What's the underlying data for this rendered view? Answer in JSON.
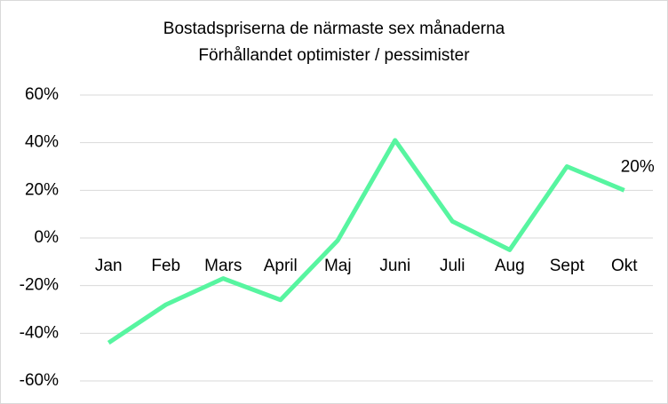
{
  "chart_data": {
    "type": "line",
    "title": "Bostadspriserna de närmaste sex månaderna",
    "subtitle": "Förhållandet optimister / pessimister",
    "categories": [
      "Jan",
      "Feb",
      "Mars",
      "April",
      "Maj",
      "Juni",
      "Juli",
      "Aug",
      "Sept",
      "Okt"
    ],
    "series": [
      {
        "color": "#57f5a0",
        "values": [
          -44,
          -28,
          -17,
          -26,
          -1,
          41,
          7,
          -5,
          30,
          20
        ],
        "value_labels": [
          null,
          null,
          null,
          null,
          null,
          null,
          null,
          null,
          null,
          "20%"
        ]
      }
    ],
    "ylim": [
      -60,
      60
    ],
    "yticks": [
      {
        "value": -60,
        "label": "-60%"
      },
      {
        "value": -40,
        "label": "-40%"
      },
      {
        "value": -20,
        "label": "-20%"
      },
      {
        "value": 0,
        "label": "0%"
      },
      {
        "value": 20,
        "label": "20%"
      },
      {
        "value": 40,
        "label": "40%"
      },
      {
        "value": 60,
        "label": "60%"
      }
    ],
    "grid": true
  }
}
